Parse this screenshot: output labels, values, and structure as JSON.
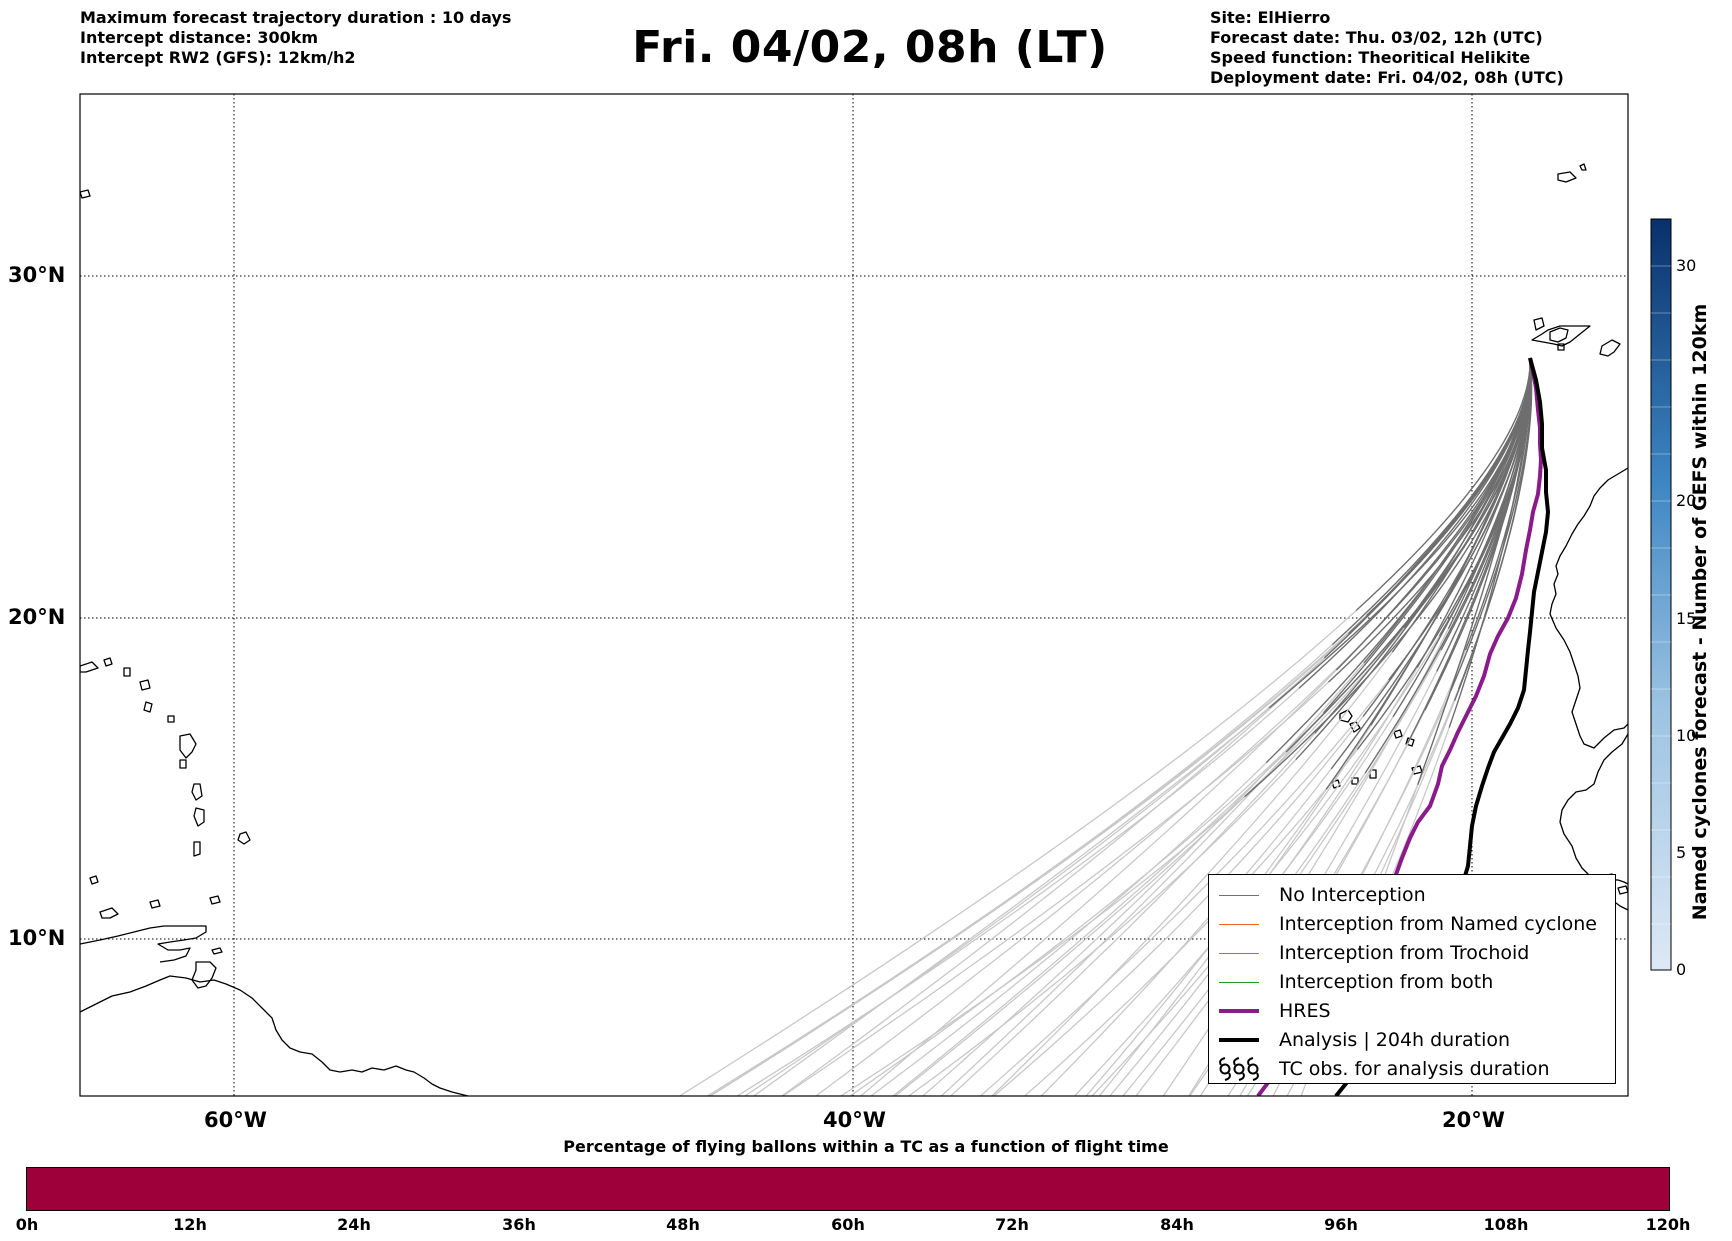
{
  "header_left": [
    "Maximum forecast trajectory duration : 10 days",
    "Intercept distance: 300km",
    "Intercept RW2 (GFS):  12km/h2"
  ],
  "title": "Fri. 04/02, 08h (LT)",
  "header_right": [
    "Site: ElHierro",
    "Forecast date: Thu. 03/02, 12h (UTC)",
    "Speed function: Theoritical Helikite",
    "Deployment date: Fri. 04/02, 08h (UTC)"
  ],
  "map": {
    "lon_range": [
      -65,
      -15
    ],
    "lat_range": [
      5,
      34.4
    ],
    "lat_labels": [
      "30°N",
      "20°N",
      "10°N"
    ],
    "lon_labels": [
      "60°W",
      "40°W",
      "20°W"
    ],
    "site": {
      "name": "ElHierro",
      "lon": -18.0,
      "lat": 27.7
    }
  },
  "legend": {
    "items": [
      {
        "label": "No Interception",
        "color": "#707070",
        "width": 1.5
      },
      {
        "label": "Interception from Named cyclone",
        "color": "#e8632a",
        "width": 1.5
      },
      {
        "label": "Interception from Trochoid",
        "color": "#8a8a1e",
        "width": 1.5
      },
      {
        "label": "Interception from both",
        "color": "#1f9c1f",
        "width": 1.5
      },
      {
        "label": "HRES",
        "color": "#8b1a8b",
        "width": 4
      },
      {
        "label": "Analysis | 204h duration",
        "color": "#000000",
        "width": 4
      },
      {
        "label": "TC obs. for analysis duration",
        "icon": "cyclone-symbols"
      }
    ]
  },
  "colorbar_vertical": {
    "label": "Named cyclones forecast - Number of GEFS within 120km",
    "ticks": [
      "0",
      "5",
      "10",
      "15",
      "20",
      "30"
    ],
    "min_color": "#dde9f6",
    "max_color": "#08306b"
  },
  "colorbar_horizontal": {
    "title": "Percentage of flying ballons within a TC as a function of flight time",
    "ticks": [
      "0h",
      "12h",
      "24h",
      "36h",
      "48h",
      "60h",
      "72h",
      "84h",
      "96h",
      "108h",
      "120h"
    ],
    "color": "#9e003a"
  }
}
